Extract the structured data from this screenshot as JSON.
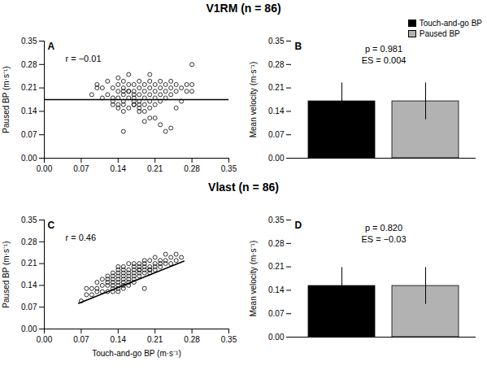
{
  "chart_data": [
    {
      "type": "scatter",
      "title": "V1RM (n = 86)",
      "annotations": [
        "A",
        "r = −0.01"
      ],
      "x": [
        0.09,
        0.1,
        0.11,
        0.12,
        0.12,
        0.13,
        0.13,
        0.13,
        0.14,
        0.14,
        0.14,
        0.14,
        0.14,
        0.15,
        0.15,
        0.15,
        0.15,
        0.15,
        0.15,
        0.15,
        0.16,
        0.16,
        0.16,
        0.16,
        0.16,
        0.17,
        0.17,
        0.17,
        0.17,
        0.17,
        0.17,
        0.18,
        0.18,
        0.18,
        0.18,
        0.18,
        0.18,
        0.19,
        0.19,
        0.19,
        0.19,
        0.19,
        0.2,
        0.2,
        0.2,
        0.2,
        0.2,
        0.2,
        0.21,
        0.21,
        0.21,
        0.21,
        0.22,
        0.22,
        0.22,
        0.22,
        0.23,
        0.23,
        0.23,
        0.24,
        0.24,
        0.24,
        0.25,
        0.25,
        0.25,
        0.26,
        0.26,
        0.27,
        0.27,
        0.28,
        0.28,
        0.28,
        0.1,
        0.11,
        0.13,
        0.14,
        0.16,
        0.18,
        0.2,
        0.22,
        0.24,
        0.15,
        0.17,
        0.19,
        0.21,
        0.23
      ],
      "values": [
        0.19,
        0.21,
        0.18,
        0.19,
        0.23,
        0.17,
        0.21,
        0.18,
        0.15,
        0.18,
        0.2,
        0.22,
        0.24,
        0.14,
        0.17,
        0.19,
        0.21,
        0.23,
        0.16,
        0.2,
        0.15,
        0.18,
        0.2,
        0.22,
        0.25,
        0.16,
        0.18,
        0.2,
        0.22,
        0.17,
        0.19,
        0.15,
        0.17,
        0.19,
        0.21,
        0.23,
        0.16,
        0.14,
        0.16,
        0.18,
        0.2,
        0.22,
        0.15,
        0.17,
        0.19,
        0.21,
        0.23,
        0.25,
        0.16,
        0.18,
        0.2,
        0.22,
        0.17,
        0.19,
        0.21,
        0.23,
        0.18,
        0.2,
        0.22,
        0.19,
        0.21,
        0.23,
        0.2,
        0.22,
        0.15,
        0.21,
        0.17,
        0.22,
        0.2,
        0.2,
        0.22,
        0.28,
        0.22,
        0.21,
        0.16,
        0.16,
        0.2,
        0.14,
        0.12,
        0.1,
        0.09,
        0.08,
        0.16,
        0.11,
        0.12,
        0.08
      ],
      "fit_line": {
        "x": [
          0.0,
          0.35
        ],
        "y": [
          0.175,
          0.175
        ]
      },
      "color": "#000000",
      "ylabel": "Paused BP (m·s⁻¹)",
      "xlim": [
        0.0,
        0.35
      ],
      "ylim": [
        0.0,
        0.35
      ],
      "xticks": [
        {
          "value": 0,
          "label": "0.00"
        },
        0.07,
        0.14,
        0.21,
        0.28,
        0.35
      ],
      "yticks": [
        {
          "value": 0,
          "label": "0.00"
        },
        0.07,
        0.14,
        0.21,
        0.28,
        0.35
      ]
    },
    {
      "type": "bar",
      "annotations": [
        "B",
        "p = 0.981",
        "ES = 0.004"
      ],
      "categories": [
        "Touch-and-go BP",
        "Paused BP"
      ],
      "values": [
        0.17,
        0.17
      ],
      "errors": [
        0.055,
        0.055
      ],
      "colors": [
        "#000000",
        "#b2b2b2"
      ],
      "legend": "upper right",
      "tick_labels": "y",
      "ylabel": "Mean velocity (m·s⁻¹)",
      "ylim": [
        0.0,
        0.35
      ],
      "yticks": [
        {
          "value": 0,
          "label": "0.00"
        },
        0.07,
        0.14,
        0.21,
        0.28,
        0.35
      ]
    },
    {
      "type": "scatter",
      "title": "Vlast (n = 86)",
      "annotations": [
        "C",
        "r = 0.46"
      ],
      "x": [
        0.07,
        0.08,
        0.08,
        0.09,
        0.09,
        0.1,
        0.1,
        0.1,
        0.11,
        0.11,
        0.11,
        0.12,
        0.12,
        0.12,
        0.12,
        0.12,
        0.13,
        0.13,
        0.13,
        0.13,
        0.13,
        0.13,
        0.14,
        0.14,
        0.14,
        0.14,
        0.14,
        0.14,
        0.14,
        0.14,
        0.15,
        0.15,
        0.15,
        0.15,
        0.15,
        0.15,
        0.15,
        0.16,
        0.16,
        0.16,
        0.16,
        0.16,
        0.16,
        0.17,
        0.17,
        0.17,
        0.17,
        0.17,
        0.17,
        0.18,
        0.18,
        0.18,
        0.18,
        0.18,
        0.19,
        0.19,
        0.19,
        0.19,
        0.19,
        0.2,
        0.2,
        0.2,
        0.2,
        0.21,
        0.21,
        0.21,
        0.21,
        0.22,
        0.22,
        0.22,
        0.23,
        0.23,
        0.23,
        0.24,
        0.24,
        0.25,
        0.25,
        0.26,
        0.13,
        0.14,
        0.15,
        0.16,
        0.17,
        0.18,
        0.19,
        0.2
      ],
      "values": [
        0.09,
        0.11,
        0.13,
        0.11,
        0.13,
        0.12,
        0.13,
        0.15,
        0.12,
        0.14,
        0.16,
        0.12,
        0.14,
        0.15,
        0.16,
        0.17,
        0.13,
        0.14,
        0.15,
        0.16,
        0.17,
        0.18,
        0.13,
        0.14,
        0.15,
        0.16,
        0.17,
        0.18,
        0.19,
        0.2,
        0.14,
        0.15,
        0.16,
        0.17,
        0.18,
        0.19,
        0.2,
        0.15,
        0.16,
        0.17,
        0.18,
        0.19,
        0.21,
        0.16,
        0.17,
        0.18,
        0.19,
        0.2,
        0.21,
        0.17,
        0.18,
        0.19,
        0.2,
        0.21,
        0.18,
        0.19,
        0.2,
        0.21,
        0.22,
        0.18,
        0.19,
        0.2,
        0.22,
        0.19,
        0.2,
        0.21,
        0.23,
        0.2,
        0.21,
        0.22,
        0.21,
        0.22,
        0.24,
        0.21,
        0.23,
        0.22,
        0.24,
        0.23,
        0.12,
        0.12,
        0.13,
        0.14,
        0.15,
        0.19,
        0.13,
        0.19
      ],
      "fit_line": {
        "x": [
          0.065,
          0.265
        ],
        "y": [
          0.0822,
          0.2182
        ]
      },
      "color": "#000000",
      "xlabel": "Touch-and-go BP (m·s⁻¹)",
      "ylabel": "Paused BP (m·s⁻¹)",
      "xlim": [
        0.0,
        0.35
      ],
      "ylim": [
        0.0,
        0.35
      ],
      "xticks": [
        {
          "value": 0,
          "label": "0.00"
        },
        0.07,
        0.14,
        0.21,
        0.28,
        0.35
      ],
      "yticks": [
        {
          "value": 0,
          "label": "0.00"
        },
        0.07,
        0.14,
        0.21,
        0.28,
        0.35
      ]
    },
    {
      "type": "bar",
      "annotations": [
        "D",
        "p = 0.820",
        "ES = −0.03"
      ],
      "categories": [
        null,
        null
      ],
      "values": [
        0.153,
        0.153
      ],
      "errors": [
        0.055,
        0.055
      ],
      "colors": [
        "#000000",
        "#b2b2b2"
      ],
      "tick_labels": "y",
      "ylabel": "Mean velocity (m·s⁻¹)",
      "ylim": [
        0.0,
        0.35
      ],
      "yticks": [
        {
          "value": 0,
          "label": "0.00"
        },
        0.07,
        0.14,
        0.21,
        0.28,
        0.35
      ]
    }
  ]
}
